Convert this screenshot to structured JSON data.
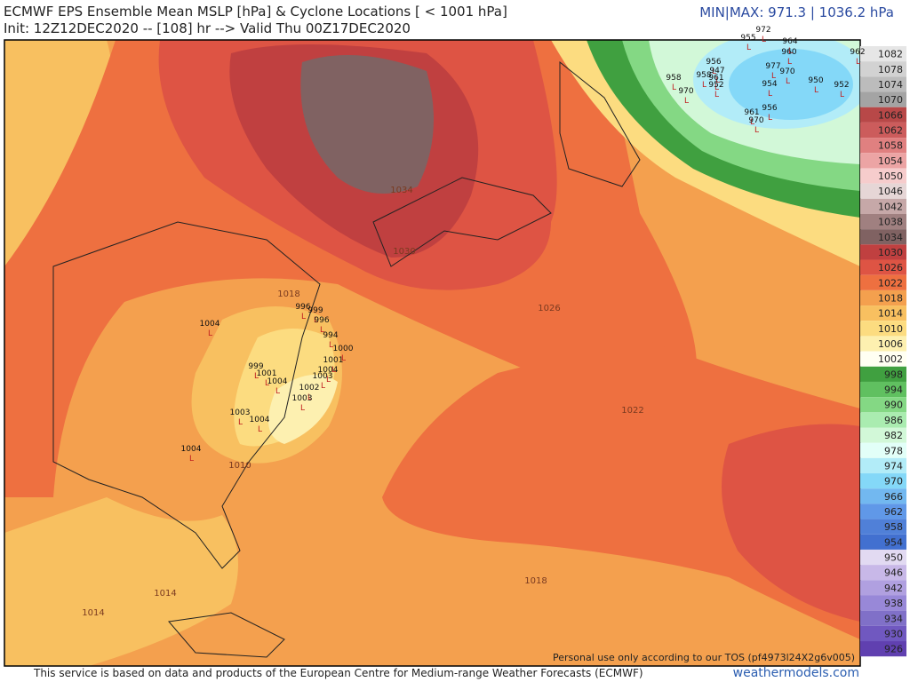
{
  "header": {
    "title": "ECMWF EPS Ensemble Mean MSLP [hPa] & Cyclone Locations [ < 1001 hPa]",
    "subtitle": "Init: 12Z12DEC2020 -- [108] hr --> Valid Thu 00Z17DEC2020",
    "minmax": "MIN|MAX: 971.3 | 1036.2 hPa"
  },
  "colorbar": [
    {
      "value": 1082,
      "color": "#e6e6e6"
    },
    {
      "value": 1078,
      "color": "#d2d2d2"
    },
    {
      "value": 1074,
      "color": "#bcbcbc"
    },
    {
      "value": 1070,
      "color": "#a4a4a4"
    },
    {
      "value": 1066,
      "color": "#b84848"
    },
    {
      "value": 1062,
      "color": "#cc5c5c"
    },
    {
      "value": 1058,
      "color": "#e08080"
    },
    {
      "value": 1054,
      "color": "#eca4a4"
    },
    {
      "value": 1050,
      "color": "#f6cccc"
    },
    {
      "value": 1046,
      "color": "#e6d6d6"
    },
    {
      "value": 1042,
      "color": "#c6a8a8"
    },
    {
      "value": 1038,
      "color": "#a08080"
    },
    {
      "value": 1034,
      "color": "#806262"
    },
    {
      "value": 1030,
      "color": "#c04040"
    },
    {
      "value": 1026,
      "color": "#de5444"
    },
    {
      "value": 1022,
      "color": "#ee7040"
    },
    {
      "value": 1018,
      "color": "#f4a04e"
    },
    {
      "value": 1014,
      "color": "#f8c060"
    },
    {
      "value": 1010,
      "color": "#fcdc80"
    },
    {
      "value": 1006,
      "color": "#fdf0b0"
    },
    {
      "value": 1002,
      "color": "#fffff2"
    },
    {
      "value": 998,
      "color": "#40a040"
    },
    {
      "value": 994,
      "color": "#60c060"
    },
    {
      "value": 990,
      "color": "#84d884"
    },
    {
      "value": 986,
      "color": "#aaecb0"
    },
    {
      "value": 982,
      "color": "#d2f8d8"
    },
    {
      "value": 978,
      "color": "#e2fff8"
    },
    {
      "value": 974,
      "color": "#b2ecf8"
    },
    {
      "value": 970,
      "color": "#84d8f8"
    },
    {
      "value": 966,
      "color": "#72b8f0"
    },
    {
      "value": 962,
      "color": "#6098e8"
    },
    {
      "value": 958,
      "color": "#5080d8"
    },
    {
      "value": 954,
      "color": "#4270d0"
    },
    {
      "value": 950,
      "color": "#e2daf2"
    },
    {
      "value": 946,
      "color": "#c8b8e8"
    },
    {
      "value": 942,
      "color": "#b0a0e0"
    },
    {
      "value": 938,
      "color": "#9888d8"
    },
    {
      "value": 934,
      "color": "#8070c8"
    },
    {
      "value": 930,
      "color": "#7058c0"
    },
    {
      "value": 926,
      "color": "#6040b0"
    }
  ],
  "contour_labels": [
    1018,
    1026,
    1022,
    1018,
    1014,
    1014,
    1010,
    1030,
    1034
  ],
  "cyclones": [
    1004,
    1004,
    1003,
    1004,
    994,
    1000,
    1001,
    1004,
    1003,
    1002,
    1003,
    999,
    1001,
    1004,
    996,
    999,
    996,
    972,
    955,
    964,
    960,
    962,
    956,
    977,
    970,
    947,
    958,
    958,
    961,
    970,
    952,
    952,
    954,
    950,
    961,
    970,
    956
  ],
  "tos": "Personal use only according to our TOS (pf4973l24X2g6v005)",
  "footer": "This service is based on data and products of the European Centre for Medium-range Weather Forecasts (ECMWF)",
  "brand": "weathermodels.com"
}
